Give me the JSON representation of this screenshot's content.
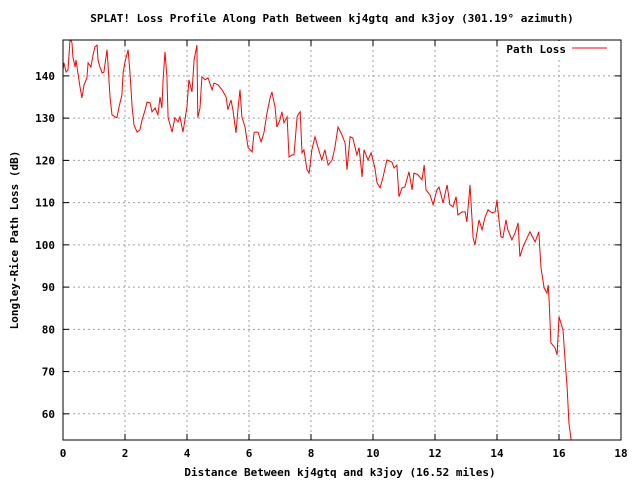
{
  "chart_data": {
    "type": "line",
    "title": "SPLAT! Loss Profile Along Path Between kj4gtq and k3joy (301.19° azimuth)",
    "xlabel": "Distance Between kj4gtq and k3joy (16.52 miles)",
    "ylabel": "Longley-Rice Path Loss (dB)",
    "xlim": [
      0,
      18
    ],
    "ylim": [
      53.8,
      148.5
    ],
    "xticks": [
      0,
      2,
      4,
      6,
      8,
      10,
      12,
      14,
      16,
      18
    ],
    "yticks": [
      60,
      70,
      80,
      90,
      100,
      110,
      120,
      130,
      140
    ],
    "grid": true,
    "legend_position": "top-right",
    "series": [
      {
        "name": "Path Loss",
        "color": "#ff0000",
        "x": [
          0.0,
          0.03,
          0.1,
          0.16,
          0.23,
          0.29,
          0.32,
          0.39,
          0.42,
          0.48,
          0.55,
          0.61,
          0.68,
          0.77,
          0.81,
          0.9,
          0.97,
          1.03,
          1.1,
          1.13,
          1.19,
          1.26,
          1.32,
          1.42,
          1.45,
          1.52,
          1.58,
          1.68,
          1.74,
          1.81,
          1.9,
          1.94,
          2.0,
          2.1,
          2.16,
          2.23,
          2.29,
          2.39,
          2.48,
          2.55,
          2.65,
          2.71,
          2.81,
          2.87,
          2.97,
          3.06,
          3.13,
          3.19,
          3.23,
          3.29,
          3.35,
          3.39,
          3.52,
          3.61,
          3.71,
          3.77,
          3.87,
          4.0,
          4.06,
          4.16,
          4.23,
          4.32,
          4.35,
          4.42,
          4.48,
          4.58,
          4.68,
          4.81,
          4.87,
          5.0,
          5.13,
          5.26,
          5.32,
          5.42,
          5.48,
          5.58,
          5.65,
          5.71,
          5.77,
          5.87,
          5.97,
          6.1,
          6.16,
          6.19,
          6.29,
          6.39,
          6.48,
          6.58,
          6.68,
          6.74,
          6.84,
          6.9,
          7.0,
          7.06,
          7.13,
          7.23,
          7.29,
          7.39,
          7.45,
          7.55,
          7.58,
          7.65,
          7.71,
          7.77,
          7.87,
          7.94,
          8.03,
          8.13,
          8.23,
          8.35,
          8.45,
          8.55,
          8.68,
          8.77,
          8.87,
          9.0,
          9.1,
          9.16,
          9.26,
          9.35,
          9.48,
          9.55,
          9.65,
          9.71,
          9.84,
          9.94,
          10.06,
          10.13,
          10.23,
          10.32,
          10.45,
          10.61,
          10.68,
          10.77,
          10.84,
          10.94,
          11.03,
          11.16,
          11.26,
          11.32,
          11.45,
          11.58,
          11.65,
          11.71,
          11.84,
          11.94,
          12.06,
          12.13,
          12.26,
          12.39,
          12.48,
          12.58,
          12.68,
          12.74,
          12.87,
          12.97,
          13.03,
          13.13,
          13.23,
          13.29,
          13.35,
          13.42,
          13.52,
          13.61,
          13.71,
          13.84,
          13.94,
          14.0,
          14.06,
          14.13,
          14.19,
          14.29,
          14.35,
          14.48,
          14.58,
          14.68,
          14.74,
          14.84,
          14.97,
          15.06,
          15.23,
          15.35,
          15.42,
          15.52,
          15.61,
          15.65,
          15.68,
          15.74,
          15.87,
          15.94,
          16.0,
          16.13,
          16.19,
          16.26,
          16.32,
          16.39
        ],
        "y": [
          141.4,
          143.1,
          140.9,
          141.4,
          148.9,
          147.8,
          144.5,
          142.1,
          143.8,
          140.7,
          137.4,
          134.8,
          137.9,
          139.5,
          143.1,
          142.1,
          145.0,
          146.9,
          147.3,
          143.8,
          142.1,
          140.7,
          140.9,
          146.2,
          143.1,
          134.8,
          130.8,
          130.3,
          130.1,
          132.7,
          135.5,
          140.7,
          143.3,
          146.2,
          140.7,
          132.7,
          128.4,
          126.7,
          127.2,
          129.6,
          132.0,
          133.8,
          133.6,
          131.5,
          132.4,
          130.8,
          135.0,
          132.4,
          139.1,
          145.7,
          139.8,
          130.1,
          126.7,
          130.1,
          129.1,
          130.3,
          126.7,
          132.7,
          139.1,
          136.2,
          143.8,
          147.3,
          130.1,
          132.4,
          139.8,
          139.1,
          139.5,
          136.7,
          138.3,
          137.9,
          136.7,
          135.0,
          132.0,
          134.3,
          132.0,
          126.5,
          132.7,
          136.7,
          130.3,
          127.9,
          123.0,
          122.0,
          126.5,
          126.7,
          126.7,
          124.4,
          126.5,
          131.2,
          134.8,
          136.2,
          132.7,
          127.9,
          129.6,
          131.5,
          128.9,
          130.3,
          120.8,
          121.3,
          121.3,
          130.3,
          130.8,
          131.5,
          121.8,
          122.5,
          117.8,
          117.0,
          122.5,
          125.6,
          123.0,
          120.1,
          122.5,
          118.9,
          120.1,
          123.0,
          127.9,
          126.0,
          124.1,
          117.8,
          125.6,
          125.3,
          121.3,
          123.0,
          116.1,
          122.5,
          120.1,
          121.8,
          118.2,
          114.7,
          113.5,
          115.9,
          120.1,
          119.6,
          118.2,
          118.9,
          111.4,
          113.5,
          113.7,
          117.3,
          113.0,
          117.0,
          116.6,
          115.4,
          118.9,
          113.0,
          111.8,
          109.5,
          113.0,
          113.7,
          109.9,
          114.2,
          109.5,
          109.0,
          111.4,
          107.1,
          107.8,
          107.8,
          105.4,
          114.2,
          101.7,
          100.0,
          102.8,
          105.9,
          103.6,
          106.4,
          108.3,
          107.6,
          107.8,
          110.7,
          105.9,
          101.9,
          101.7,
          105.9,
          103.6,
          101.2,
          102.8,
          105.2,
          97.2,
          99.5,
          101.7,
          103.1,
          100.7,
          103.1,
          94.6,
          89.8,
          88.6,
          90.5,
          87.0,
          76.8,
          75.6,
          74.0,
          83.0,
          79.9,
          73.3,
          66.4,
          57.9,
          53.8
        ]
      }
    ]
  }
}
